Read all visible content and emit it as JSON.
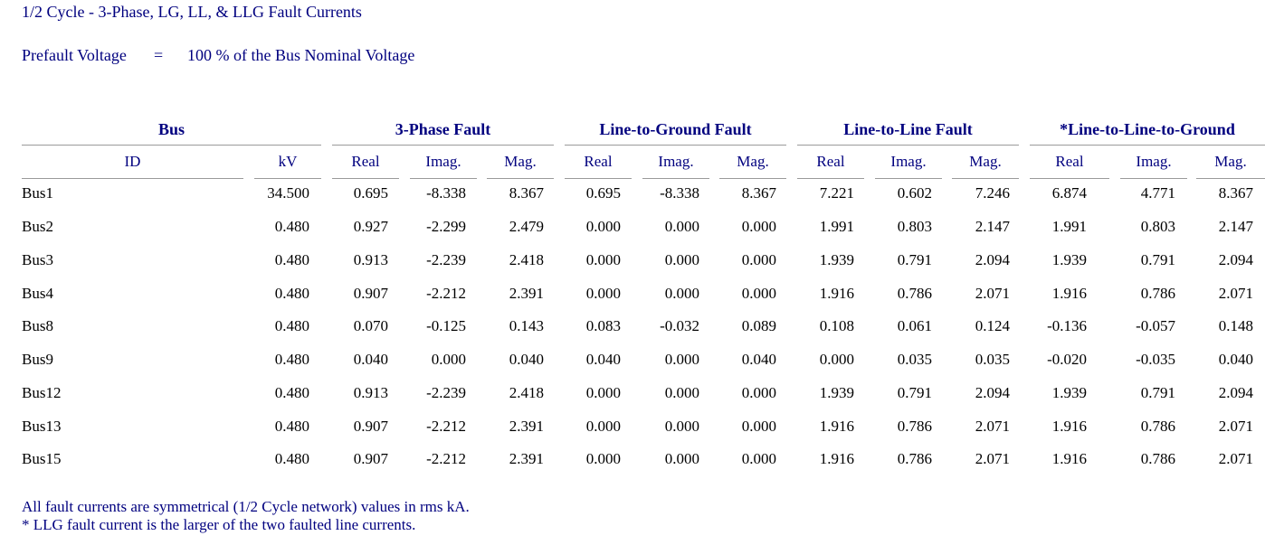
{
  "title": "1/2 Cycle - 3-Phase, LG, LL, & LLG Fault Currents",
  "prefault": {
    "label": "Prefault Voltage",
    "equals": "=",
    "value": "100 % of the Bus Nominal Voltage"
  },
  "groups": {
    "bus": "Bus",
    "three_phase": "3-Phase Fault",
    "lg": "Line-to-Ground Fault",
    "ll": "Line-to-Line Fault",
    "llg": "*Line-to-Line-to-Ground"
  },
  "columns": {
    "id": "ID",
    "kv": "kV",
    "real": "Real",
    "imag": "Imag.",
    "mag": "Mag."
  },
  "rows": [
    [
      "Bus1",
      "34.500",
      "0.695",
      "-8.338",
      "8.367",
      "0.695",
      "-8.338",
      "8.367",
      "7.221",
      "0.602",
      "7.246",
      "6.874",
      "4.771",
      "8.367"
    ],
    [
      "Bus2",
      "0.480",
      "0.927",
      "-2.299",
      "2.479",
      "0.000",
      "0.000",
      "0.000",
      "1.991",
      "0.803",
      "2.147",
      "1.991",
      "0.803",
      "2.147"
    ],
    [
      "Bus3",
      "0.480",
      "0.913",
      "-2.239",
      "2.418",
      "0.000",
      "0.000",
      "0.000",
      "1.939",
      "0.791",
      "2.094",
      "1.939",
      "0.791",
      "2.094"
    ],
    [
      "Bus4",
      "0.480",
      "0.907",
      "-2.212",
      "2.391",
      "0.000",
      "0.000",
      "0.000",
      "1.916",
      "0.786",
      "2.071",
      "1.916",
      "0.786",
      "2.071"
    ],
    [
      "Bus8",
      "0.480",
      "0.070",
      "-0.125",
      "0.143",
      "0.083",
      "-0.032",
      "0.089",
      "0.108",
      "0.061",
      "0.124",
      "-0.136",
      "-0.057",
      "0.148"
    ],
    [
      "Bus9",
      "0.480",
      "0.040",
      "0.000",
      "0.040",
      "0.040",
      "0.000",
      "0.040",
      "0.000",
      "0.035",
      "0.035",
      "-0.020",
      "-0.035",
      "0.040"
    ],
    [
      "Bus12",
      "0.480",
      "0.913",
      "-2.239",
      "2.418",
      "0.000",
      "0.000",
      "0.000",
      "1.939",
      "0.791",
      "2.094",
      "1.939",
      "0.791",
      "2.094"
    ],
    [
      "Bus13",
      "0.480",
      "0.907",
      "-2.212",
      "2.391",
      "0.000",
      "0.000",
      "0.000",
      "1.916",
      "0.786",
      "2.071",
      "1.916",
      "0.786",
      "2.071"
    ],
    [
      "Bus15",
      "0.480",
      "0.907",
      "-2.212",
      "2.391",
      "0.000",
      "0.000",
      "0.000",
      "1.916",
      "0.786",
      "2.071",
      "1.916",
      "0.786",
      "2.071"
    ]
  ],
  "footnotes": [
    "All fault currents are symmetrical (1/2 Cycle network) values in rms kA.",
    "* LLG fault current is the larger of the two faulted line currents."
  ]
}
